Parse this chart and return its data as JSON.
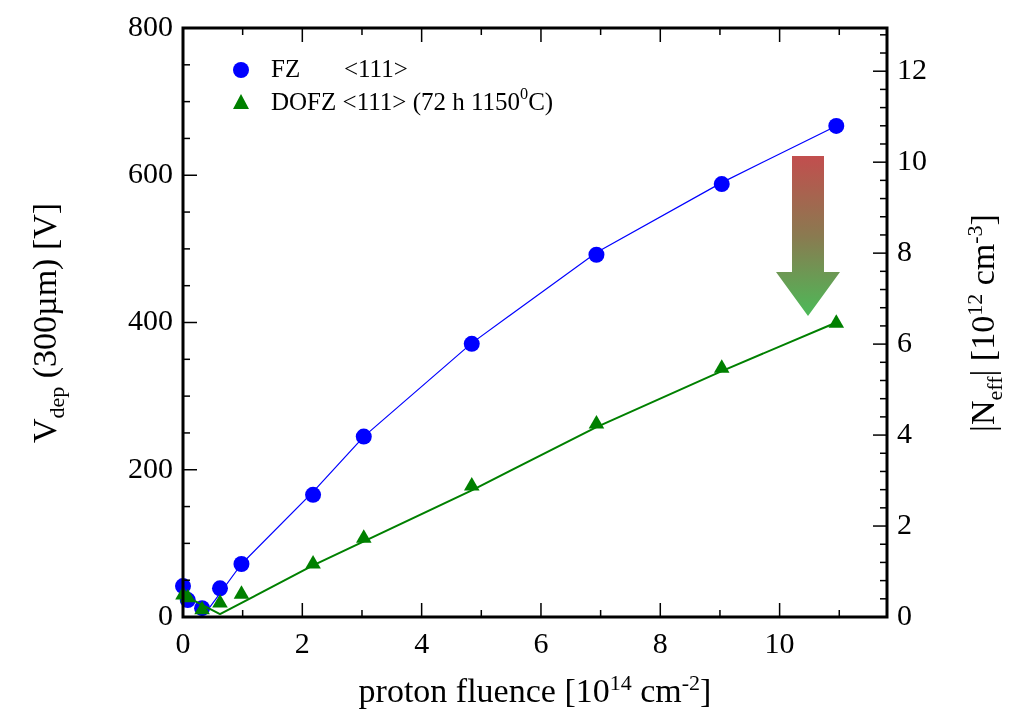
{
  "chart_data": {
    "type": "scatter",
    "xlabel": "proton fluence [10$^{14}$ cm$^{-2}$]",
    "ylabel": "V$_{dep}$ (300µm) [V]",
    "y2label": "|N$_{eff}$| [10$^{12}$ cm$^{-3}$]",
    "series": [
      {
        "name": "FZ       <111>",
        "marker": "circle",
        "color": "#0000ff",
        "x": [
          0,
          0.08,
          0.32,
          0.62,
          0.98,
          2.18,
          3.03,
          4.84,
          6.93,
          9.03,
          10.95
        ],
        "values": [
          42,
          23,
          12,
          39,
          72,
          166,
          245,
          371,
          492,
          588,
          667
        ]
      },
      {
        "name": "DOFZ <111> (72 h 1150$^{0}$C)",
        "marker": "triangle",
        "color": "#008000",
        "x": [
          0,
          0.08,
          0.32,
          0.62,
          0.98,
          2.18,
          3.03,
          4.84,
          6.93,
          9.03,
          10.95
        ],
        "values": [
          30,
          26,
          10,
          19,
          31,
          72,
          107,
          178,
          262,
          338,
          399
        ]
      },
      {
        "type": "line",
        "marker": "none",
        "color": "#0000ff",
        "x": [
          0.42,
          0.98,
          2.18,
          3.03,
          4.84,
          6.93,
          9.03,
          10.95
        ],
        "values": [
          10,
          72,
          170,
          245,
          372,
          495,
          590,
          667
        ]
      },
      {
        "type": "line",
        "marker": "none",
        "color": "#008000",
        "x": [
          0,
          0.62,
          2.18,
          4.84,
          6.93,
          9.03,
          10.95
        ],
        "values": [
          30,
          4,
          70,
          172,
          258,
          334,
          400
        ]
      }
    ],
    "xlim": [
      0,
      11.8
    ],
    "xticks": [
      0,
      {
        "value": 1,
        "label": null
      },
      2,
      {
        "value": 3,
        "label": null
      },
      4,
      {
        "value": 5,
        "label": null
      },
      6,
      {
        "value": 7,
        "label": null
      },
      8,
      {
        "value": 9,
        "label": null
      },
      10,
      {
        "value": 11,
        "label": null
      }
    ],
    "ylim": [
      0,
      800
    ],
    "yticks": [
      0,
      {
        "value": 50,
        "label": null
      },
      {
        "value": 100,
        "label": null
      },
      {
        "value": 150,
        "label": null
      },
      200,
      {
        "value": 250,
        "label": null
      },
      {
        "value": 300,
        "label": null
      },
      {
        "value": 350,
        "label": null
      },
      400,
      {
        "value": 450,
        "label": null
      },
      {
        "value": 500,
        "label": null
      },
      {
        "value": 550,
        "label": null
      },
      600,
      {
        "value": 650,
        "label": null
      },
      {
        "value": 700,
        "label": null
      },
      {
        "value": 750,
        "label": null
      },
      800
    ],
    "y2lim": [
      0,
      12.95
    ],
    "y2ticks": [
      0,
      {
        "value": 0.4,
        "label": null
      },
      {
        "value": 0.8,
        "label": null
      },
      {
        "value": 1.2,
        "label": null
      },
      {
        "value": 1.6,
        "label": null
      },
      2,
      {
        "value": 2.4,
        "label": null
      },
      {
        "value": 2.8,
        "label": null
      },
      {
        "value": 3.2,
        "label": null
      },
      {
        "value": 3.6,
        "label": null
      },
      4,
      {
        "value": 4.4,
        "label": null
      },
      {
        "value": 4.8,
        "label": null
      },
      {
        "value": 5.2,
        "label": null
      },
      {
        "value": 5.6,
        "label": null
      },
      6,
      {
        "value": 6.4,
        "label": null
      },
      {
        "value": 6.8,
        "label": null
      },
      {
        "value": 7.2,
        "label": null
      },
      {
        "value": 7.6,
        "label": null
      },
      8,
      {
        "value": 8.4,
        "label": null
      },
      {
        "value": 8.8,
        "label": null
      },
      {
        "value": 9.2,
        "label": null
      },
      {
        "value": 9.6,
        "label": null
      },
      10,
      {
        "value": 10.4,
        "label": null
      },
      {
        "value": 10.8,
        "label": null
      },
      {
        "value": 11.2,
        "label": null
      },
      {
        "value": 11.6,
        "label": null
      },
      12,
      {
        "value": 12.4,
        "label": null
      },
      {
        "value": 12.8,
        "label": null
      }
    ],
    "legend": "top left",
    "grid": false
  }
}
